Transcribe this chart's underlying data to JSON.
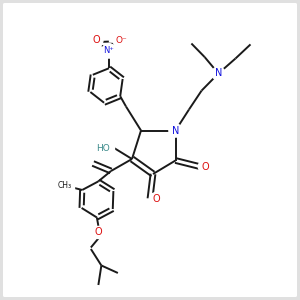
{
  "bg_color": "#e0e0e0",
  "mol_bg": "#ffffff",
  "bond_color": "#1a1a1a",
  "bond_width": 1.4,
  "N_color": "#1010dd",
  "O_color": "#dd1111",
  "HO_color": "#3a8a8a",
  "figsize": [
    3.0,
    3.0
  ],
  "dpi": 100,
  "xlim": [
    0,
    10
  ],
  "ylim": [
    0,
    10
  ]
}
